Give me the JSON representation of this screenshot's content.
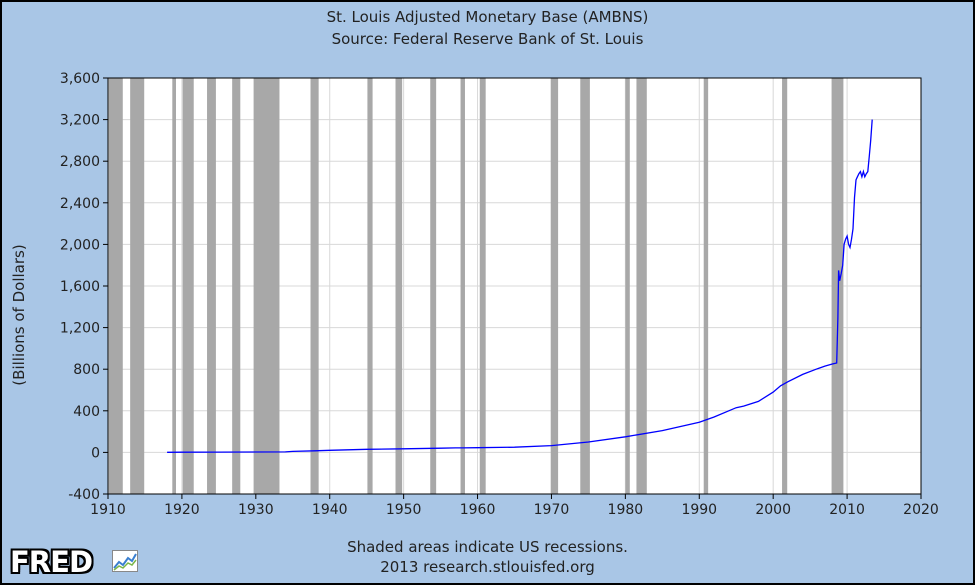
{
  "title": "St. Louis Adjusted Monetary Base (AMBNS)",
  "subtitle": "Source: Federal Reserve Bank of St. Louis",
  "footer": {
    "note": "Shaded areas indicate US recessions.",
    "credit": "2013 research.stlouisfed.org"
  },
  "logo": {
    "text": "FRED",
    "icon": "chart-line-icon"
  },
  "colors": {
    "background": "#a9c6e6",
    "plot": "#ffffff",
    "recession": "#a8a8a8",
    "line": "#0000ff",
    "grid": "#d8d8d8"
  },
  "chart_data": {
    "type": "line",
    "title": "St. Louis Adjusted Monetary Base (AMBNS)",
    "ylabel": "(Billions of Dollars)",
    "xlabel": "",
    "xlim": [
      1910,
      2020
    ],
    "ylim": [
      -400,
      3600
    ],
    "xticks": [
      1910,
      1920,
      1930,
      1940,
      1950,
      1960,
      1970,
      1980,
      1990,
      2000,
      2010,
      2020
    ],
    "yticks": [
      -400,
      0,
      400,
      800,
      1200,
      1600,
      2000,
      2400,
      2800,
      3200,
      3600
    ],
    "ytick_labels": [
      "-400",
      "0",
      "400",
      "800",
      "1,200",
      "1,600",
      "2,000",
      "2,400",
      "2,800",
      "3,200",
      "3,600"
    ],
    "grid": true,
    "recessions": [
      [
        1910.1,
        1912.0
      ],
      [
        1913.0,
        1914.9
      ],
      [
        1918.7,
        1919.2
      ],
      [
        1920.1,
        1921.6
      ],
      [
        1923.4,
        1924.6
      ],
      [
        1926.8,
        1927.9
      ],
      [
        1929.7,
        1933.2
      ],
      [
        1937.4,
        1938.5
      ],
      [
        1945.1,
        1945.8
      ],
      [
        1948.9,
        1949.8
      ],
      [
        1953.6,
        1954.4
      ],
      [
        1957.7,
        1958.3
      ],
      [
        1960.3,
        1961.1
      ],
      [
        1969.9,
        1970.9
      ],
      [
        1973.9,
        1975.2
      ],
      [
        1980.0,
        1980.6
      ],
      [
        1981.5,
        1982.9
      ],
      [
        1990.6,
        1991.2
      ],
      [
        2001.2,
        2001.9
      ],
      [
        2007.9,
        2009.5
      ]
    ],
    "series": [
      {
        "x": [
          1918,
          1920,
          1925,
          1930,
          1934,
          1935,
          1938,
          1940,
          1945,
          1950,
          1955,
          1957,
          1958,
          1960,
          1965,
          1970,
          1975,
          1980,
          1985,
          1990,
          1992,
          1994,
          1995,
          1996,
          1998,
          2000,
          2001,
          2002,
          2004,
          2006,
          2007,
          2008.0,
          2008.6,
          2008.75,
          2008.85,
          2009.0,
          2009.2,
          2009.4,
          2009.6,
          2009.8,
          2010.0,
          2010.2,
          2010.4,
          2010.6,
          2010.8,
          2011.0,
          2011.2,
          2011.4,
          2011.6,
          2011.8,
          2012.0,
          2012.2,
          2012.4,
          2012.6,
          2012.8,
          2013.0,
          2013.2,
          2013.4
        ],
        "y": [
          1,
          2,
          3,
          4,
          5,
          10,
          15,
          20,
          30,
          35,
          40,
          43,
          43,
          45,
          50,
          65,
          100,
          150,
          210,
          290,
          340,
          400,
          430,
          445,
          490,
          580,
          640,
          680,
          750,
          805,
          830,
          850,
          860,
          1300,
          1750,
          1650,
          1720,
          1800,
          2000,
          2050,
          2080,
          2000,
          1970,
          2050,
          2150,
          2450,
          2620,
          2650,
          2680,
          2700,
          2650,
          2700,
          2650,
          2680,
          2700,
          2850,
          3000,
          3200
        ]
      }
    ]
  }
}
